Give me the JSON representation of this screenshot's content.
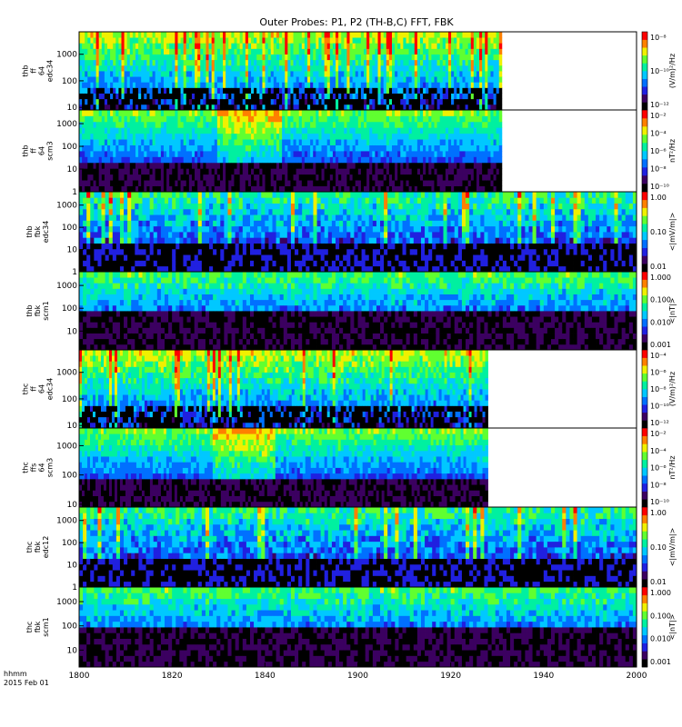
{
  "chart_data": {
    "type": "heatmap",
    "title": "Outer Probes: P1, P2 (TH-B,C) FFT, FBK",
    "x_time_hhmm": [
      1800,
      2000
    ],
    "x_ticks": [
      "1800",
      "1820",
      "1840",
      "1900",
      "1920",
      "1940",
      "2000"
    ],
    "x_footer": [
      "hhmm",
      "2015 Feb 01"
    ],
    "colors": {
      "colormap": [
        "#000000",
        "#3b0060",
        "#2020e0",
        "#0070ff",
        "#00c8ff",
        "#00f0a0",
        "#60ff30",
        "#f0f000",
        "#ff8000",
        "#ff0000"
      ]
    },
    "panels": [
      {
        "label": [
          "thb",
          "ff",
          "64",
          "edc34"
        ],
        "yticks": [
          "10",
          "100",
          "1000"
        ],
        "ylog": true,
        "yrange": [
          8,
          7000
        ],
        "data_end": 1931,
        "cbar": {
          "label": "(V/m)²/Hz",
          "ticks": [
            "10⁻⁸",
            "10⁻¹⁰",
            "10⁻¹²"
          ],
          "cmin": 0,
          "cmax": 1
        },
        "style": "fft_e"
      },
      {
        "label": [
          "thb",
          "ff",
          "64",
          "scm3"
        ],
        "yticks": [
          "1",
          "10",
          "100",
          "1000"
        ],
        "ylog": true,
        "yrange": [
          1,
          4000
        ],
        "data_end": 1931,
        "cbar": {
          "label": "nT²/Hz",
          "ticks": [
            "10⁻²",
            "10⁻⁴",
            "10⁻⁶",
            "10⁻⁸",
            "10⁻¹⁰"
          ],
          "cmin": 0,
          "cmax": 1
        },
        "style": "fft_b"
      },
      {
        "label": [
          "thb",
          "fbk",
          "edc34"
        ],
        "yticks": [
          "1",
          "10",
          "100",
          "1000"
        ],
        "ylog": true,
        "yrange": [
          1,
          4000
        ],
        "data_end": 2000,
        "cbar": {
          "label": "<|mV/m|>",
          "ticks": [
            "1.00",
            "0.10",
            "0.01"
          ],
          "cmin": 0,
          "cmax": 1
        },
        "style": "fbk"
      },
      {
        "label": [
          "thb",
          "fbk",
          "scm1"
        ],
        "yticks": [
          "10",
          "100",
          "1000"
        ],
        "ylog": true,
        "yrange": [
          1.5,
          4000
        ],
        "data_end": 2000,
        "cbar": {
          "label": "<|nT|>",
          "ticks": [
            "1.000",
            "0.100",
            "0.010",
            "0.001"
          ],
          "cmin": 0,
          "cmax": 1
        },
        "style": "fbk_scm"
      },
      {
        "label": [
          "thc",
          "ff",
          "64",
          "edc34"
        ],
        "yticks": [
          "10",
          "100",
          "1000"
        ],
        "ylog": true,
        "yrange": [
          8,
          7000
        ],
        "data_end": 1928,
        "cbar": {
          "label": "(V/m)²/Hz",
          "ticks": [
            "10⁻⁴",
            "10⁻⁶",
            "10⁻⁸",
            "10⁻¹⁰",
            "10⁻¹²"
          ],
          "cmin": 0,
          "cmax": 1
        },
        "style": "fft_e"
      },
      {
        "label": [
          "thc",
          "ffs",
          "64",
          "scm3"
        ],
        "yticks": [
          "10",
          "100",
          "1000"
        ],
        "ylog": true,
        "yrange": [
          8,
          4000
        ],
        "data_end": 1928,
        "cbar": {
          "label": "nT²/Hz",
          "ticks": [
            "10⁻²",
            "10⁻⁴",
            "10⁻⁶",
            "10⁻⁸",
            "10⁻¹⁰"
          ],
          "cmin": 0,
          "cmax": 1
        },
        "style": "fft_b"
      },
      {
        "label": [
          "thc",
          "fbk",
          "edc12"
        ],
        "yticks": [
          "1",
          "10",
          "100",
          "1000"
        ],
        "ylog": true,
        "yrange": [
          1,
          4000
        ],
        "data_end": 2000,
        "cbar": {
          "label": "<|mV/m|>",
          "ticks": [
            "1.00",
            "0.10",
            "0.01"
          ],
          "cmin": 0,
          "cmax": 1
        },
        "style": "fbk"
      },
      {
        "label": [
          "thc",
          "fbk",
          "scm1"
        ],
        "yticks": [
          "10",
          "100",
          "1000"
        ],
        "ylog": true,
        "yrange": [
          2,
          4000
        ],
        "data_end": 2000,
        "cbar": {
          "label": "<|nT|>",
          "ticks": [
            "1.000",
            "0.100",
            "0.010",
            "0.001"
          ],
          "cmin": 0,
          "cmax": 1
        },
        "style": "fbk_scm"
      }
    ]
  }
}
